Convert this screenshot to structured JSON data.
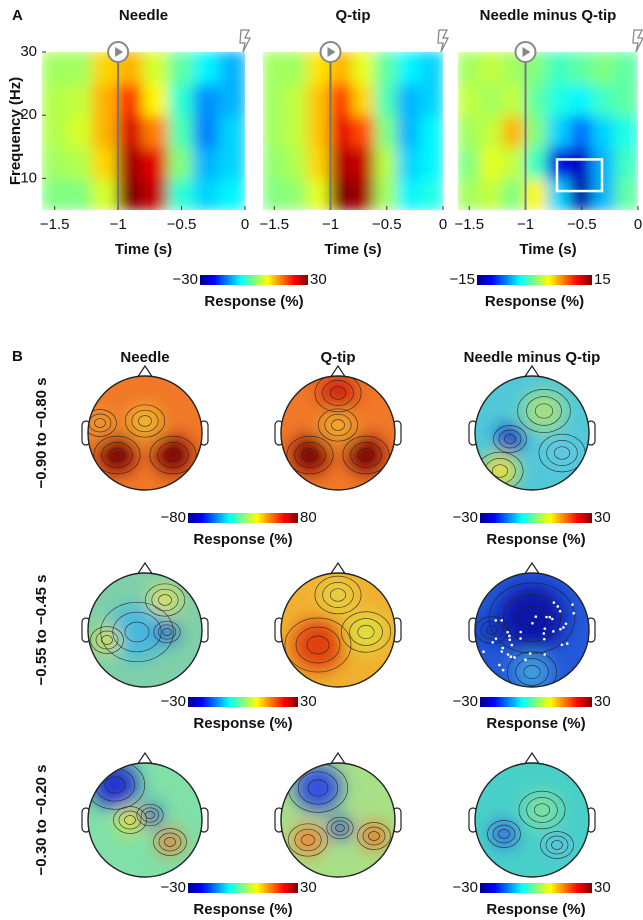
{
  "panel_labels": [
    "A",
    "B"
  ],
  "chart_data": [
    {
      "type": "heatmap",
      "title": "Needle",
      "xlabel": "Time (s)",
      "ylabel": "Frequency (Hz)",
      "xlim": [
        -1.6,
        0
      ],
      "ylim": [
        5,
        30
      ],
      "xticks": [
        {
          "value": -1.5,
          "label": "−1.5"
        },
        {
          "value": -1,
          "label": "−1"
        },
        {
          "value": -0.5,
          "label": "−0.5"
        },
        0
      ],
      "yticks": [
        10,
        20,
        30
      ],
      "x": [
        -1.5,
        -1.3,
        -1.1,
        -0.9,
        -0.7,
        -0.5,
        -0.3,
        -0.1
      ],
      "y": [
        7.5,
        12.5,
        17.5,
        22.5,
        27.5
      ],
      "z": [
        [
          0,
          0,
          5,
          30,
          26,
          -5,
          -10,
          -8
        ],
        [
          2,
          3,
          10,
          28,
          24,
          0,
          -12,
          -10
        ],
        [
          3,
          5,
          12,
          25,
          15,
          -3,
          -15,
          -10
        ],
        [
          3,
          4,
          12,
          20,
          8,
          -5,
          -14,
          -12
        ],
        [
          2,
          2,
          10,
          12,
          5,
          -2,
          -8,
          -12
        ]
      ],
      "zlim": [
        -30,
        30
      ],
      "colorbar_ticks": [
        {
          "value": -30,
          "label": "−30"
        },
        30
      ],
      "colorbar_label": "Response (%)",
      "marker_x": -1
    },
    {
      "type": "heatmap",
      "title": "Q-tip",
      "xlabel": "Time (s)",
      "xlim": [
        -1.6,
        0
      ],
      "ylim": [
        5,
        30
      ],
      "xticks": [
        {
          "value": -1.5,
          "label": "−1.5"
        },
        {
          "value": -1,
          "label": "−1"
        },
        {
          "value": -0.5,
          "label": "−0.5"
        },
        0
      ],
      "x": [
        -1.5,
        -1.3,
        -1.1,
        -0.9,
        -0.7,
        -0.5,
        -0.3,
        -0.1
      ],
      "y": [
        7.5,
        12.5,
        17.5,
        22.5,
        27.5
      ],
      "z": [
        [
          0,
          1,
          6,
          30,
          28,
          2,
          -8,
          -6
        ],
        [
          1,
          3,
          10,
          27,
          26,
          3,
          -10,
          -8
        ],
        [
          2,
          4,
          11,
          24,
          18,
          0,
          -12,
          -8
        ],
        [
          2,
          4,
          11,
          20,
          10,
          -3,
          -12,
          -10
        ],
        [
          2,
          2,
          9,
          12,
          6,
          -2,
          -8,
          -10
        ]
      ],
      "marker_x": -1
    },
    {
      "type": "heatmap",
      "title": "Needle minus Q-tip",
      "xlabel": "Time (s)",
      "xlim": [
        -1.6,
        0
      ],
      "ylim": [
        5,
        30
      ],
      "xticks": [
        {
          "value": -1.5,
          "label": "−1.5"
        },
        {
          "value": -1,
          "label": "−1"
        },
        {
          "value": -0.5,
          "label": "−0.5"
        },
        0
      ],
      "x": [
        -1.5,
        -1.3,
        -1.1,
        -0.9,
        -0.7,
        -0.5,
        -0.3,
        -0.1
      ],
      "y": [
        7.5,
        12.5,
        17.5,
        22.5,
        27.5
      ],
      "z": [
        [
          1,
          2,
          0,
          4,
          -5,
          -14,
          -6,
          -1
        ],
        [
          0,
          3,
          2,
          -2,
          -12,
          -13,
          -6,
          -2
        ],
        [
          1,
          2,
          6,
          0,
          -5,
          -8,
          -5,
          -3
        ],
        [
          2,
          1,
          2,
          -1,
          -3,
          -4,
          -2,
          -1
        ],
        [
          1,
          2,
          1,
          0,
          -2,
          -1,
          0,
          -1
        ]
      ],
      "zlim": [
        -15,
        15
      ],
      "colorbar_ticks": [
        {
          "value": -15,
          "label": "−15"
        },
        15
      ],
      "colorbar_label": "Response (%)",
      "marker_x": -1,
      "box": {
        "x": [
          -0.72,
          -0.32
        ],
        "y": [
          8,
          13
        ]
      }
    }
  ],
  "panel_b": {
    "columns": [
      "Needle",
      "Q-tip",
      "Needle minus Q-tip"
    ],
    "rows": [
      {
        "label": "−0.90 to −0.80 s",
        "colorbars": [
          {
            "ticks": [
              {
                "value": -80,
                "label": "−80"
              },
              80
            ],
            "label": "Response (%)"
          },
          {
            "ticks": [
              {
                "value": -30,
                "label": "−30"
              },
              30
            ],
            "label": "Response (%)"
          }
        ]
      },
      {
        "label": "−0.55 to −0.45 s",
        "colorbars": [
          {
            "ticks": [
              {
                "value": -30,
                "label": "−30"
              },
              30
            ],
            "label": "Response (%)"
          },
          {
            "ticks": [
              {
                "value": -30,
                "label": "−30"
              },
              30
            ],
            "label": "Response (%)"
          }
        ]
      },
      {
        "label": "−0.30 to −0.20 s",
        "colorbars": [
          {
            "ticks": [
              {
                "value": -30,
                "label": "−30"
              },
              30
            ],
            "label": "Response (%)"
          },
          {
            "ticks": [
              {
                "value": -30,
                "label": "−30"
              },
              30
            ],
            "label": "Response (%)"
          }
        ]
      }
    ]
  }
}
